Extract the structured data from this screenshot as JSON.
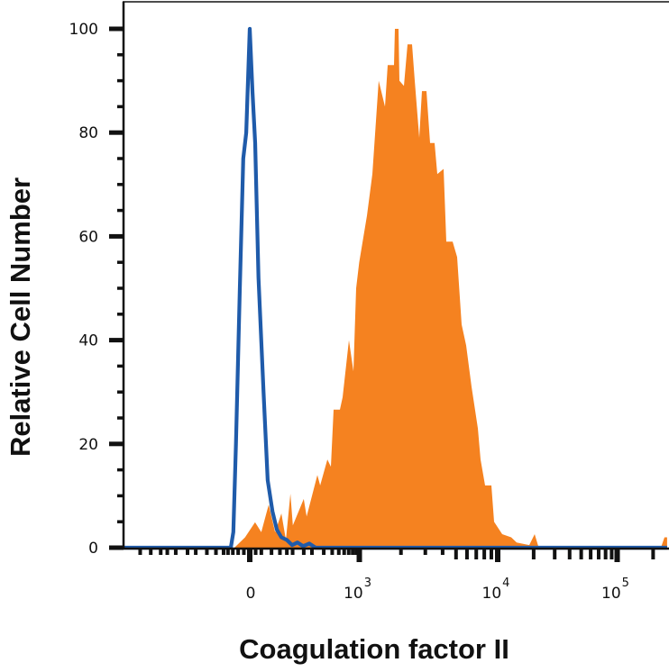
{
  "chart_data": {
    "type": "area",
    "title": "",
    "xlabel": "Coagulation factor II",
    "ylabel": "Relative Cell Number",
    "x_scale": "biexponential (logicle)",
    "xlim": [
      -1750,
      262000
    ],
    "ylim": [
      0,
      100
    ],
    "grid": false,
    "legend": "none",
    "xticks": [
      {
        "value": 0,
        "label": "0",
        "sup": ""
      },
      {
        "value": 1000,
        "label": "10",
        "sup": "3"
      },
      {
        "value": 10000,
        "label": "10",
        "sup": "4"
      },
      {
        "value": 100000,
        "label": "10",
        "sup": "5"
      }
    ],
    "yticks": [
      {
        "value": 0,
        "label": "0"
      },
      {
        "value": 20,
        "label": "20"
      },
      {
        "value": 40,
        "label": "40"
      },
      {
        "value": 60,
        "label": "60"
      },
      {
        "value": 80,
        "label": "80"
      },
      {
        "value": 100,
        "label": "100"
      }
    ],
    "series": [
      {
        "style": "filled",
        "color": "#F58220",
        "x": [
          -27,
          -8,
          9,
          20,
          34,
          48,
          64,
          77,
          92,
          101,
          150,
          166,
          241,
          265,
          339,
          383,
          420,
          520,
          569,
          704,
          820,
          898,
          995,
          1136,
          1243,
          1380,
          1533,
          1604,
          1782,
          1808,
          1920,
          1950,
          2101,
          2231,
          2405,
          2516,
          2712,
          2837,
          3058,
          3247,
          3499,
          3661,
          4066,
          4254,
          4725,
          5092,
          5488,
          5916,
          6472,
          7191,
          7519,
          8102,
          9003,
          9419,
          10907,
          12979,
          14400,
          18367,
          20390,
          21860,
          23030,
          232300,
          248900,
          262000
        ],
        "y": [
          0,
          2,
          4.9,
          3,
          8.3,
          3,
          6.6,
          1.5,
          10.4,
          4.3,
          9.4,
          6,
          14,
          12,
          17,
          15.6,
          26.6,
          26.6,
          29,
          40,
          34,
          50,
          55,
          64,
          72,
          90,
          85,
          93,
          93,
          100,
          100,
          90,
          89,
          97,
          97,
          90,
          79,
          88,
          88,
          78,
          78,
          72,
          73,
          59,
          59,
          56,
          43,
          39,
          31,
          23,
          17,
          12,
          12,
          5,
          2.6,
          2,
          1,
          0.5,
          2.6,
          0.3,
          0,
          0,
          2,
          2
        ]
      },
      {
        "style": "line",
        "color": "#1F5BAA",
        "x": [
          -1750,
          -69,
          -34,
          -29,
          -24,
          -17,
          -11,
          -6,
          0,
          4.6,
          9.2,
          15,
          24,
          32,
          42,
          52,
          64,
          80,
          98,
          120,
          146,
          182,
          227,
          262000
        ],
        "y": [
          0,
          0,
          0,
          3,
          20,
          50,
          75,
          80,
          100,
          88,
          78,
          52,
          30,
          13,
          7,
          3.5,
          2,
          1.5,
          0.5,
          1,
          0.3,
          0.8,
          0,
          0
        ]
      }
    ]
  }
}
